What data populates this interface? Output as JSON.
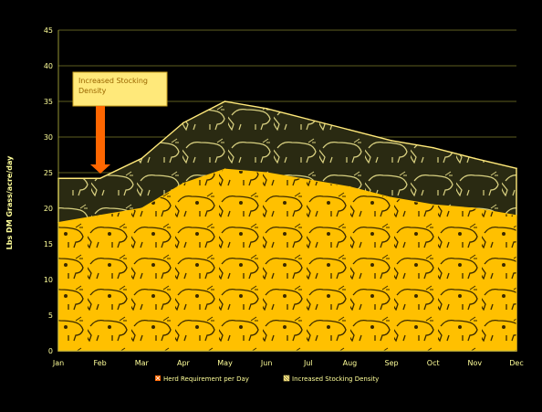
{
  "chart_data": {
    "type": "area",
    "categories": [
      "Jan",
      "Feb",
      "Mar",
      "Apr",
      "May",
      "Jun",
      "Jul",
      "Aug",
      "Sep",
      "Oct",
      "Nov",
      "Dec"
    ],
    "ylabel": "Lbs DM Grass/acre/day",
    "xlabel": "",
    "ylim": [
      0,
      45
    ],
    "yticks": [
      0,
      5,
      10,
      15,
      20,
      25,
      30,
      35,
      40,
      45
    ],
    "grid": true,
    "legend_position": "bottom",
    "series": [
      {
        "name": "Herd Requirement per Day",
        "values": [
          18,
          19,
          20,
          23.5,
          25.5,
          25,
          24,
          23,
          21.5,
          20.5,
          20,
          19
        ],
        "color": "#FFC000"
      },
      {
        "name": "Increased Stocking Density",
        "values": [
          24.2,
          24.2,
          27,
          32,
          35,
          34,
          32.5,
          31,
          29.5,
          28.5,
          27,
          25.6
        ],
        "color": "#FFE97A"
      }
    ],
    "annotations": [
      {
        "text": "Increased Stocking Density",
        "points_to": "Feb"
      }
    ]
  },
  "colors": {
    "background": "#000000",
    "grid": "#BBBB40",
    "text": "#FFFF99",
    "arrow": "#FF6600",
    "callout_fill": "#FFE97A",
    "callout_border": "#C8A020",
    "callout_text": "#996600"
  }
}
